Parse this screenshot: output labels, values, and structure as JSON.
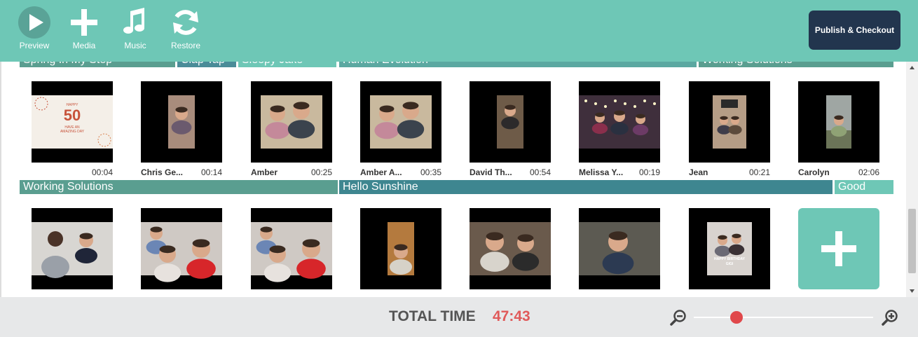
{
  "toolbar": {
    "preview_label": "Preview",
    "media_label": "Media",
    "music_label": "Music",
    "restore_label": "Restore",
    "publish_label": "Publish & Checkout"
  },
  "tracks_row1": [
    {
      "name": "Spring In My Step",
      "color": "#5a9e90"
    },
    {
      "name": "Clap Tap",
      "color": "#4a8c98"
    },
    {
      "name": "Sleepy Jake",
      "color": "#6ec7b6"
    },
    {
      "name": "Human Evolution",
      "color": "#5ba8a1"
    },
    {
      "name": "Working Solutions",
      "color": "#5a9e90"
    }
  ],
  "tracks_row2": [
    {
      "name": "Working Solutions",
      "color": "#5a9e90"
    },
    {
      "name": "Hello Sunshine",
      "color": "#3e8690"
    },
    {
      "name": "Good",
      "color": "#6ec7b6"
    }
  ],
  "clips_row1": [
    {
      "name": "",
      "time": "00:04",
      "kind": "card"
    },
    {
      "name": "Chris Ge...",
      "time": "00:14",
      "kind": "portrait"
    },
    {
      "name": "Amber",
      "time": "00:25",
      "kind": "couple"
    },
    {
      "name": "Amber A...",
      "time": "00:35",
      "kind": "couple"
    },
    {
      "name": "David Th...",
      "time": "00:54",
      "kind": "portrait-dark"
    },
    {
      "name": "Melissa Y...",
      "time": "00:19",
      "kind": "party"
    },
    {
      "name": "Jean",
      "time": "00:21",
      "kind": "portrait-room"
    },
    {
      "name": "Carolyn",
      "time": "02:06",
      "kind": "portrait-outdoor"
    }
  ],
  "clips_row2": [
    {
      "kind": "duo"
    },
    {
      "kind": "family"
    },
    {
      "kind": "family"
    },
    {
      "kind": "portrait-boy"
    },
    {
      "kind": "couple-home"
    },
    {
      "kind": "man-talk"
    },
    {
      "kind": "birthday-card"
    }
  ],
  "card_text": {
    "top": "HAPPY",
    "number": "50",
    "line1": "HAVE AN",
    "line2": "AMAZING DAY"
  },
  "birthday_text": {
    "line1": "HAPPY BIRTHDAY",
    "line2": "GIGI"
  },
  "footer": {
    "total_label": "TOTAL TIME",
    "total_value": "47:43",
    "zoom_level": 0.24
  },
  "colors": {
    "accent": "#6ec7b6",
    "publish_bg": "#22354e",
    "total_value": "#e05a5a",
    "zoom_knob": "#e0484b"
  }
}
